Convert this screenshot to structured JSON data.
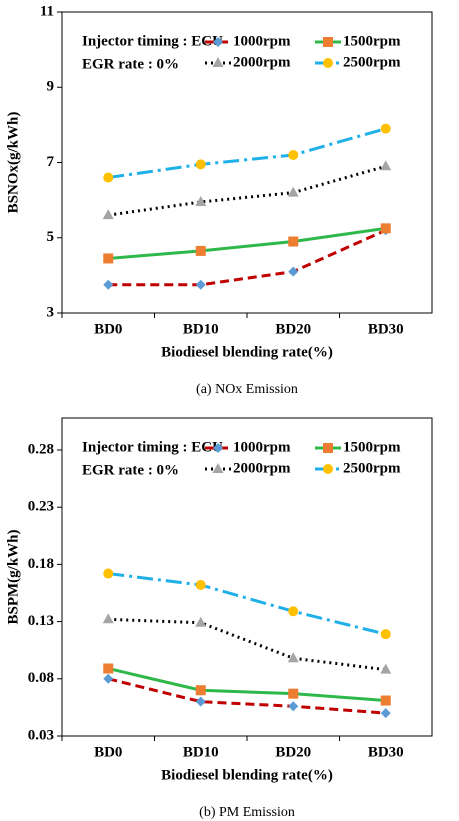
{
  "chart_data": [
    {
      "type": "line",
      "ylabel": "BSNOx(g/kWh)",
      "xlabel": "Biodiesel blending rate(%)",
      "caption": "(a)  NOx  Emission",
      "annotations": [
        "Injector timing : ECU",
        "EGR rate : 0%"
      ],
      "categories": [
        "BD0",
        "BD10",
        "BD20",
        "BD30"
      ],
      "ylim": [
        3,
        11
      ],
      "yticks": [
        3,
        5,
        7,
        9,
        11
      ],
      "series": [
        {
          "name": "1000rpm",
          "color": "#c00000",
          "marker_color": "#5b9bd5",
          "marker": "diamond",
          "dash": "9,5",
          "values": [
            3.75,
            3.75,
            4.1,
            5.2
          ]
        },
        {
          "name": "1500rpm",
          "color": "#2eb84a",
          "marker_color": "#ed7d31",
          "marker": "square",
          "dash": "none",
          "values": [
            4.45,
            4.65,
            4.9,
            5.25
          ]
        },
        {
          "name": "2000rpm",
          "color": "#000000",
          "marker_color": "#a5a5a5",
          "marker": "triangle",
          "dash": "2,4",
          "values": [
            5.6,
            5.95,
            6.2,
            6.9
          ]
        },
        {
          "name": "2500rpm",
          "color": "#1fb0e8",
          "marker_color": "#ffc000",
          "marker": "circle",
          "dash": "16,5,3,5",
          "values": [
            6.6,
            6.95,
            7.2,
            7.9
          ]
        }
      ]
    },
    {
      "type": "line",
      "ylabel": "BSPM(g/kWh)",
      "xlabel": "Biodiesel blending rate(%)",
      "caption": "(b)  PM  Emission",
      "annotations": [
        "Injector timing : ECU",
        "EGR rate : 0%"
      ],
      "categories": [
        "BD0",
        "BD10",
        "BD20",
        "BD30"
      ],
      "ylim": [
        0.03,
        0.28
      ],
      "yticks": [
        0.03,
        0.08,
        0.13,
        0.18,
        0.23,
        0.28
      ],
      "series": [
        {
          "name": "1000rpm",
          "color": "#c00000",
          "marker_color": "#5b9bd5",
          "marker": "diamond",
          "dash": "9,5",
          "values": [
            0.08,
            0.06,
            0.056,
            0.05
          ]
        },
        {
          "name": "1500rpm",
          "color": "#2eb84a",
          "marker_color": "#ed7d31",
          "marker": "square",
          "dash": "none",
          "values": [
            0.089,
            0.07,
            0.067,
            0.061
          ]
        },
        {
          "name": "2000rpm",
          "color": "#000000",
          "marker_color": "#a5a5a5",
          "marker": "triangle",
          "dash": "2,4",
          "values": [
            0.132,
            0.129,
            0.098,
            0.088
          ]
        },
        {
          "name": "2500rpm",
          "color": "#1fb0e8",
          "marker_color": "#ffc000",
          "marker": "circle",
          "dash": "16,5,3,5",
          "values": [
            0.172,
            0.162,
            0.139,
            0.119
          ]
        }
      ]
    }
  ]
}
